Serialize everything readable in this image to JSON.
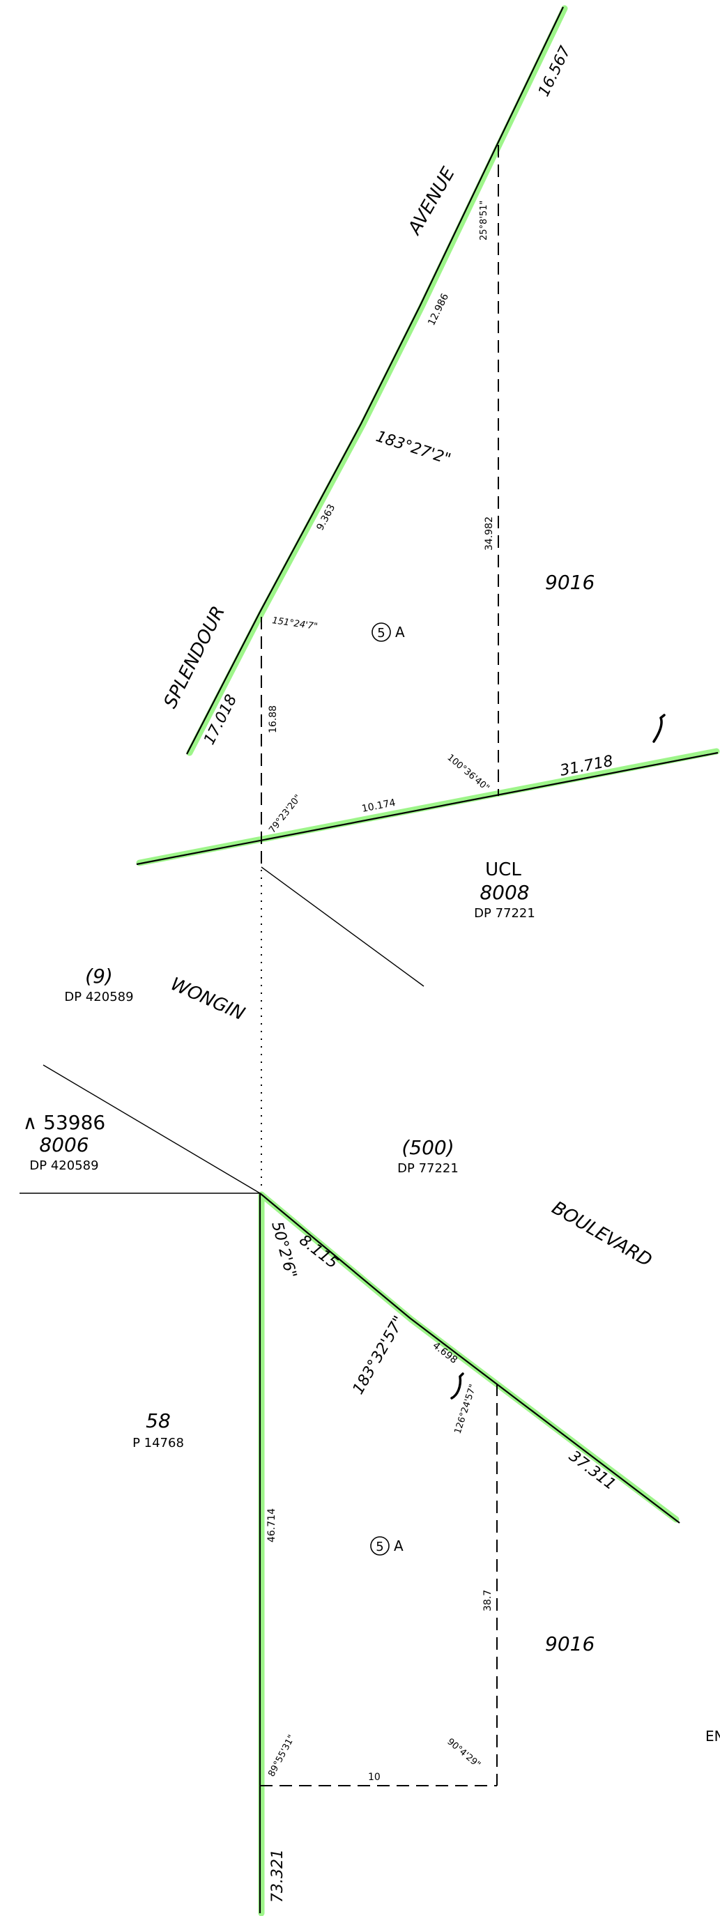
{
  "roads": {
    "avenue": "AVENUE",
    "splendour": "SPLENDOUR",
    "wongin": "WONGIN",
    "boulevard": "BOULEVARD",
    "edge_cut": "EN"
  },
  "lots": {
    "upper_9016": "9016",
    "lower_9016": "9016",
    "ucl_label": "UCL",
    "ucl_lot": "8008",
    "ucl_plan": "DP 77221",
    "lot_9": "(9)",
    "lot_9_plan": "DP 420589",
    "lot_8006_prefix": "∧ 53986",
    "lot_8006": "8006",
    "lot_8006_plan": "DP 420589",
    "lot_500": "(500)",
    "lot_500_plan": "DP 77221",
    "lot_58": "58",
    "lot_58_plan": "P 14768",
    "easement_upper": "A",
    "easement_lower": "A",
    "easement_num_upper": "5",
    "easement_num_lower": "5"
  },
  "dimensions": {
    "d_16_567": "16.567",
    "d_12_986": "12.986",
    "d_9_363": "9.363",
    "d_17_018": "17.018",
    "d_16_88": "16.88",
    "d_34_982": "34.982",
    "d_10_174": "10.174",
    "d_31_718": "31.718",
    "d_8_115": "8.115",
    "d_4_698": "4.698",
    "d_37_311": "37.311",
    "d_38_7": "38.7",
    "d_46_714": "46.714",
    "d_10": "10",
    "d_73_321": "73.321"
  },
  "bearings": {
    "b_25_8_51": "25°8'51\"",
    "b_183_27_2": "183°27'2\"",
    "b_151_24_7": "151°24'7\"",
    "b_79_23_20": "79°23'20\"",
    "b_100_36_40": "100°36'40\"",
    "b_50_2_6": "50°2'6\"",
    "b_183_32_57": "183°32'57\"",
    "b_126_24_57": "126°24'57\"",
    "b_89_55_31": "89°55'31\"",
    "b_90_4_29": "90°4'29\""
  },
  "colors": {
    "highlight": "#9ef58a",
    "line": "#000000"
  }
}
